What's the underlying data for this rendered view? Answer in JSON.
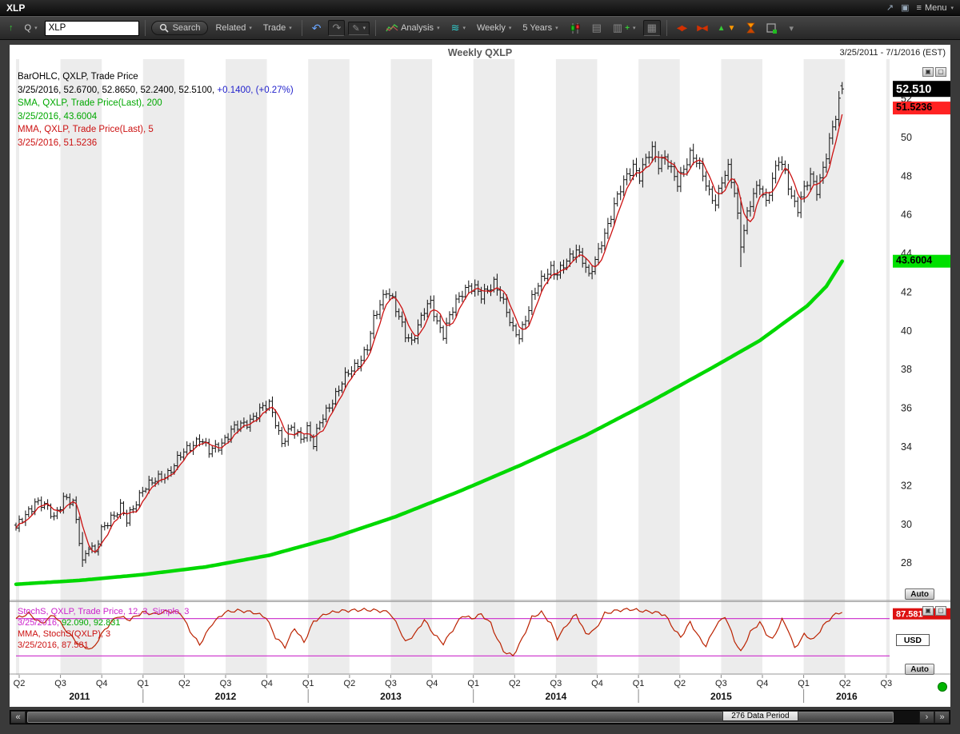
{
  "window": {
    "title": "XLP",
    "menu_label": "Menu"
  },
  "icons": {
    "up_arrow": "↑",
    "dropdown": "▾",
    "undo": "↶",
    "redo": "↷",
    "pencil": "✎",
    "waves": "≋",
    "grid": "▦",
    "chart_box": "▤",
    "add_chart": "▥",
    "plus": "+",
    "menu": "≡",
    "popout": "↗",
    "pin": "▣",
    "compress_arrows": "◀▶",
    "expand_arrows": "▶◀",
    "up_tri": "▲",
    "down_tri": "▼",
    "chevron_down": "▾",
    "double_left": "«",
    "double_right": "»",
    "single_right": "›",
    "pane_a": "▣",
    "pane_b": "▢"
  },
  "toolbar": {
    "symbol_type": "Q",
    "symbol_value": "XLP",
    "search_label": "Search",
    "related_label": "Related",
    "trade_label": "Trade",
    "analysis_label": "Analysis",
    "period_label": "Weekly",
    "range_label": "5 Years"
  },
  "chart": {
    "title": "Weekly QXLP",
    "date_range": "3/25/2011 - 7/1/2016 (EST)",
    "auto_label": "Auto",
    "flags": {
      "last": "52.510",
      "mma": "51.5236",
      "sma": "43.6004"
    },
    "legend_lines": [
      [
        {
          "t": "BarOHLC, QXLP, Trade Price",
          "c": "#000000"
        }
      ],
      [
        {
          "t": "3/25/2016, 52.6700, 52.8650, 52.2400, 52.5100, ",
          "c": "#000000"
        },
        {
          "t": "+0.1400, (+0.27%)",
          "c": "#2222cc"
        }
      ],
      [
        {
          "t": "SMA, QXLP, Trade Price(Last), 200",
          "c": "#00a800"
        }
      ],
      [
        {
          "t": "3/25/2016, 43.6004",
          "c": "#00a800"
        }
      ],
      [
        {
          "t": "MMA, QXLP, Trade Price(Last), 5",
          "c": "#cc1111"
        }
      ],
      [
        {
          "t": "3/25/2016, 51.5236",
          "c": "#cc1111"
        }
      ]
    ]
  },
  "stoch": {
    "auto_label": "Auto",
    "currency": "USD",
    "flag": "87.581",
    "legend_lines": [
      [
        {
          "t": "StochS, QXLP, Trade Price, 12, 3, Simple, 3",
          "c": "#cc22cc"
        }
      ],
      [
        {
          "t": "3/25/2016, ",
          "c": "#cc22cc"
        },
        {
          "t": "92.090, 92.831",
          "c": "#00a800"
        }
      ],
      [
        {
          "t": "MMA, StochS(QXLP), 3",
          "c": "#cc1111"
        }
      ],
      [
        {
          "t": "3/25/2016, 87.581",
          "c": "#cc1111"
        }
      ]
    ]
  },
  "scrollbar": {
    "label": "276 Data Period"
  },
  "chart_data": {
    "type": "ohlc",
    "symbol": "QXLP",
    "timeframe": "Weekly",
    "x_start": "3/25/2011",
    "x_end": "7/1/2016",
    "weeks_total": 276,
    "weeks_data": 262,
    "ylim": [
      26.6,
      53.8
    ],
    "y_ticks": [
      28,
      30,
      32,
      34,
      36,
      38,
      40,
      42,
      44,
      46,
      48,
      50,
      52
    ],
    "last": {
      "date": "3/25/2016",
      "open": 52.67,
      "high": 52.865,
      "low": 52.24,
      "close": 52.51,
      "change": 0.14,
      "change_pct": "+0.27%"
    },
    "colors": {
      "bars": "#111111",
      "sma": "#00d800",
      "mma": "#cc1111",
      "stoch_line": "#bb2200",
      "stoch_levels": "#d040d0",
      "flag_last_bg": "#000000",
      "flag_mma_bg": "#ff2222",
      "flag_sma_bg": "#00e000",
      "band": "#ececec"
    },
    "xaxis": {
      "quarters": [
        "Q2",
        "Q3",
        "Q4",
        "Q1",
        "Q2",
        "Q3",
        "Q4",
        "Q1",
        "Q2",
        "Q3",
        "Q4",
        "Q1",
        "Q2",
        "Q3",
        "Q4",
        "Q1",
        "Q2",
        "Q3",
        "Q4",
        "Q1",
        "Q2",
        "Q3"
      ],
      "years": [
        "2011",
        "2012",
        "2013",
        "2014",
        "2015",
        "2016"
      ]
    },
    "series": {
      "close_anchors": [
        [
          0,
          29.7
        ],
        [
          3,
          30.5
        ],
        [
          6,
          31.2
        ],
        [
          9,
          30.9
        ],
        [
          12,
          30.4
        ],
        [
          15,
          31.4
        ],
        [
          18,
          31.0
        ],
        [
          20,
          29.2
        ],
        [
          21,
          28.1
        ],
        [
          23,
          29.0
        ],
        [
          25,
          28.5
        ],
        [
          27,
          29.6
        ],
        [
          30,
          30.4
        ],
        [
          33,
          30.9
        ],
        [
          35,
          30.1
        ],
        [
          38,
          31.2
        ],
        [
          40,
          31.9
        ],
        [
          44,
          32.2
        ],
        [
          48,
          32.7
        ],
        [
          52,
          33.5
        ],
        [
          56,
          34.2
        ],
        [
          58,
          34.5
        ],
        [
          61,
          33.7
        ],
        [
          64,
          34.1
        ],
        [
          68,
          34.8
        ],
        [
          72,
          35.2
        ],
        [
          76,
          35.7
        ],
        [
          80,
          36.2
        ],
        [
          82,
          35.4
        ],
        [
          84,
          34.2
        ],
        [
          87,
          34.9
        ],
        [
          90,
          34.5
        ],
        [
          92,
          35.0
        ],
        [
          94,
          34.1
        ],
        [
          96,
          35.2
        ],
        [
          99,
          36.2
        ],
        [
          102,
          37.0
        ],
        [
          105,
          37.8
        ],
        [
          108,
          38.4
        ],
        [
          111,
          39.1
        ],
        [
          113,
          40.5
        ],
        [
          115,
          41.4
        ],
        [
          117,
          42.2
        ],
        [
          119,
          41.6
        ],
        [
          121,
          40.6
        ],
        [
          123,
          39.8
        ],
        [
          125,
          39.5
        ],
        [
          127,
          40.3
        ],
        [
          129,
          41.0
        ],
        [
          131,
          41.4
        ],
        [
          133,
          40.5
        ],
        [
          135,
          39.9
        ],
        [
          137,
          40.7
        ],
        [
          139,
          41.4
        ],
        [
          141,
          42.0
        ],
        [
          143,
          42.4
        ],
        [
          145,
          42.2
        ],
        [
          147,
          41.7
        ],
        [
          149,
          42.1
        ],
        [
          151,
          42.6
        ],
        [
          153,
          41.9
        ],
        [
          155,
          40.9
        ],
        [
          157,
          40.0
        ],
        [
          159,
          39.8
        ],
        [
          161,
          40.7
        ],
        [
          163,
          41.6
        ],
        [
          165,
          42.3
        ],
        [
          167,
          42.9
        ],
        [
          169,
          43.3
        ],
        [
          171,
          42.9
        ],
        [
          173,
          43.3
        ],
        [
          175,
          43.8
        ],
        [
          177,
          44.3
        ],
        [
          179,
          43.7
        ],
        [
          181,
          42.7
        ],
        [
          183,
          43.6
        ],
        [
          185,
          44.7
        ],
        [
          187,
          45.5
        ],
        [
          189,
          46.4
        ],
        [
          191,
          47.3
        ],
        [
          193,
          48.1
        ],
        [
          195,
          48.6
        ],
        [
          197,
          47.9
        ],
        [
          199,
          48.8
        ],
        [
          201,
          49.4
        ],
        [
          203,
          48.7
        ],
        [
          205,
          49.0
        ],
        [
          207,
          48.2
        ],
        [
          209,
          47.6
        ],
        [
          211,
          48.5
        ],
        [
          213,
          49.2
        ],
        [
          215,
          48.7
        ],
        [
          217,
          48.0
        ],
        [
          219,
          47.2
        ],
        [
          221,
          46.7
        ],
        [
          223,
          47.7
        ],
        [
          225,
          48.3
        ],
        [
          227,
          47.2
        ],
        [
          228,
          46.0
        ],
        [
          229,
          44.6
        ],
        [
          231,
          46.0
        ],
        [
          233,
          47.0
        ],
        [
          235,
          47.5
        ],
        [
          237,
          46.7
        ],
        [
          239,
          47.9
        ],
        [
          241,
          48.8
        ],
        [
          243,
          48.1
        ],
        [
          245,
          47.0
        ],
        [
          247,
          46.4
        ],
        [
          249,
          47.3
        ],
        [
          251,
          47.9
        ],
        [
          253,
          47.3
        ],
        [
          255,
          48.5
        ],
        [
          257,
          49.8
        ],
        [
          259,
          51.0
        ],
        [
          260,
          51.8
        ],
        [
          261,
          52.51
        ]
      ],
      "sma200_anchors": [
        [
          0,
          26.9
        ],
        [
          20,
          27.1
        ],
        [
          40,
          27.4
        ],
        [
          60,
          27.8
        ],
        [
          80,
          28.4
        ],
        [
          100,
          29.3
        ],
        [
          120,
          30.4
        ],
        [
          140,
          31.7
        ],
        [
          160,
          33.1
        ],
        [
          180,
          34.6
        ],
        [
          200,
          36.3
        ],
        [
          220,
          38.1
        ],
        [
          235,
          39.5
        ],
        [
          250,
          41.3
        ],
        [
          256,
          42.3
        ],
        [
          261,
          43.6
        ]
      ],
      "spikes": [
        [
          21,
          27.8,
          29.6
        ],
        [
          229,
          43.3,
          46.9
        ]
      ],
      "stoch_anchors": [
        [
          0,
          80
        ],
        [
          4,
          88
        ],
        [
          8,
          72
        ],
        [
          12,
          86
        ],
        [
          16,
          60
        ],
        [
          20,
          38
        ],
        [
          24,
          30
        ],
        [
          28,
          62
        ],
        [
          32,
          84
        ],
        [
          36,
          78
        ],
        [
          40,
          90
        ],
        [
          44,
          87
        ],
        [
          48,
          92
        ],
        [
          52,
          89
        ],
        [
          55,
          60
        ],
        [
          58,
          38
        ],
        [
          62,
          72
        ],
        [
          66,
          90
        ],
        [
          70,
          93
        ],
        [
          75,
          90
        ],
        [
          79,
          82
        ],
        [
          82,
          50
        ],
        [
          85,
          35
        ],
        [
          88,
          65
        ],
        [
          91,
          42
        ],
        [
          94,
          75
        ],
        [
          98,
          88
        ],
        [
          102,
          92
        ],
        [
          106,
          93
        ],
        [
          110,
          94
        ],
        [
          114,
          93
        ],
        [
          118,
          90
        ],
        [
          121,
          65
        ],
        [
          123,
          42
        ],
        [
          126,
          55
        ],
        [
          129,
          78
        ],
        [
          132,
          55
        ],
        [
          135,
          40
        ],
        [
          138,
          62
        ],
        [
          141,
          85
        ],
        [
          144,
          80
        ],
        [
          147,
          87
        ],
        [
          150,
          72
        ],
        [
          152,
          48
        ],
        [
          154,
          28
        ],
        [
          157,
          20
        ],
        [
          160,
          48
        ],
        [
          163,
          82
        ],
        [
          166,
          90
        ],
        [
          169,
          72
        ],
        [
          171,
          48
        ],
        [
          174,
          70
        ],
        [
          177,
          87
        ],
        [
          180,
          55
        ],
        [
          183,
          62
        ],
        [
          186,
          88
        ],
        [
          190,
          93
        ],
        [
          194,
          95
        ],
        [
          198,
          92
        ],
        [
          202,
          90
        ],
        [
          205,
          86
        ],
        [
          208,
          62
        ],
        [
          210,
          50
        ],
        [
          213,
          74
        ],
        [
          216,
          48
        ],
        [
          218,
          36
        ],
        [
          221,
          68
        ],
        [
          224,
          84
        ],
        [
          227,
          45
        ],
        [
          229,
          26
        ],
        [
          232,
          58
        ],
        [
          235,
          74
        ],
        [
          237,
          56
        ],
        [
          239,
          46
        ],
        [
          242,
          78
        ],
        [
          244,
          62
        ],
        [
          246,
          32
        ],
        [
          249,
          54
        ],
        [
          252,
          46
        ],
        [
          255,
          68
        ],
        [
          258,
          84
        ],
        [
          260,
          89
        ],
        [
          261,
          91
        ]
      ]
    },
    "stoch_panel": {
      "ylim": [
        0,
        100
      ],
      "levels": [
        80,
        20
      ],
      "last_values": [
        92.09,
        92.831
      ],
      "mma_last": 87.581
    }
  }
}
